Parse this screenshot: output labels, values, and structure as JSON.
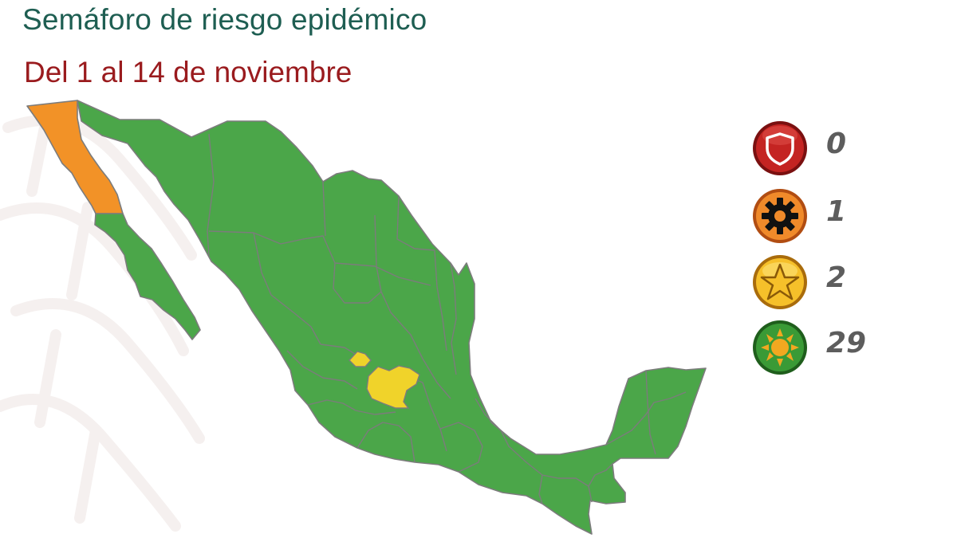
{
  "header": {
    "title": "Semáforo de riesgo epidémico",
    "subtitle": "Del 1 al 14 de noviembre"
  },
  "map": {
    "subject": "Mexico states by epidemic risk level",
    "colors": {
      "green": "#4ba649",
      "orange": "#f29227",
      "yellow": "#f0d32a",
      "border": "#7c7c7c"
    },
    "highlighted": [
      {
        "state": "Baja California",
        "level": "orange"
      },
      {
        "state": "Aguascalientes",
        "level": "yellow"
      },
      {
        "state": "Guanajuato",
        "level": "yellow"
      }
    ]
  },
  "legend": {
    "items": [
      {
        "level": "red",
        "icon": "shield-icon",
        "color": "#b0201f",
        "count": "0"
      },
      {
        "level": "orange",
        "icon": "gear-icon",
        "color": "#ee7d22",
        "count": "1"
      },
      {
        "level": "yellow",
        "icon": "star-icon",
        "color": "#f2b21d",
        "count": "2"
      },
      {
        "level": "green",
        "icon": "sun-icon",
        "color": "#3f9a3c",
        "count": "29"
      }
    ]
  }
}
